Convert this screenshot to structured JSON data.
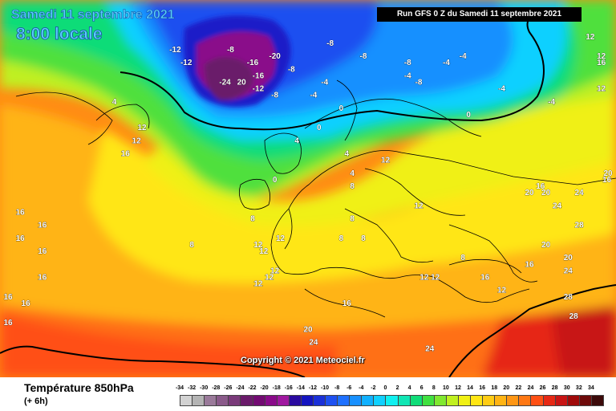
{
  "header": {
    "date_title": "Samedi 11 septembre 2021",
    "time_title": "8:00 locale",
    "run_info": "Run GFS 0 Z du Samedi 11 septembre 2021"
  },
  "copyright": "Copyright © 2021 Meteociel.fr",
  "footer": {
    "parameter": "Température 850hPa",
    "forecast_step": "(+ 6h)"
  },
  "legend": {
    "ticks": [
      "-34",
      "-32",
      "-30",
      "-28",
      "-26",
      "-24",
      "-22",
      "-20",
      "-18",
      "-16",
      "-14",
      "-12",
      "-10",
      "-8",
      "-6",
      "-4",
      "-2",
      "0",
      "2",
      "4",
      "6",
      "8",
      "10",
      "12",
      "14",
      "16",
      "18",
      "20",
      "22",
      "24",
      "26",
      "28",
      "30",
      "32",
      "34"
    ],
    "colors": [
      "#d2d2d2",
      "#b4b4b4",
      "#9a7a9a",
      "#8a5a8a",
      "#7a3a7a",
      "#6a1a6a",
      "#720a72",
      "#8a0a8a",
      "#a018a0",
      "#2a0aa0",
      "#1414c0",
      "#1a30d8",
      "#1e50f0",
      "#1e70ff",
      "#1890ff",
      "#10b0ff",
      "#10d0ff",
      "#10f0f0",
      "#10e6b4",
      "#10dc78",
      "#40e040",
      "#80e830",
      "#c0f020",
      "#f0f014",
      "#ffe614",
      "#ffcc14",
      "#ffb414",
      "#ff9614",
      "#ff7814",
      "#ff5014",
      "#e62814",
      "#c81414",
      "#a00a0a",
      "#6e0a0a",
      "#3c0a0a"
    ]
  },
  "map_labels": [
    {
      "text": "-12",
      "lon": -24,
      "lat": 68
    },
    {
      "text": "-12",
      "lon": -22,
      "lat": 66
    },
    {
      "text": "-8",
      "lon": -14,
      "lat": 68
    },
    {
      "text": "-16",
      "lon": -10,
      "lat": 66
    },
    {
      "text": "-20",
      "lon": -6,
      "lat": 67
    },
    {
      "text": "-16",
      "lon": -9,
      "lat": 64
    },
    {
      "text": "-12",
      "lon": -9,
      "lat": 62
    },
    {
      "text": "-24",
      "lon": -15,
      "lat": 63
    },
    {
      "text": "20",
      "lon": -12,
      "lat": 63
    },
    {
      "text": "-8",
      "lon": -3,
      "lat": 65
    },
    {
      "text": "-8",
      "lon": -6,
      "lat": 61
    },
    {
      "text": "-8",
      "lon": 4,
      "lat": 69
    },
    {
      "text": "-8",
      "lon": 10,
      "lat": 67
    },
    {
      "text": "-4",
      "lon": 3,
      "lat": 63
    },
    {
      "text": "-4",
      "lon": 1,
      "lat": 61
    },
    {
      "text": "0",
      "lon": 6,
      "lat": 59
    },
    {
      "text": "0",
      "lon": 2,
      "lat": 56
    },
    {
      "text": "4",
      "lon": -2,
      "lat": 54
    },
    {
      "text": "-8",
      "lon": 18,
      "lat": 66
    },
    {
      "text": "-4",
      "lon": 18,
      "lat": 64
    },
    {
      "text": "-8",
      "lon": 20,
      "lat": 63
    },
    {
      "text": "-4",
      "lon": 25,
      "lat": 66
    },
    {
      "text": "-4",
      "lon": 28,
      "lat": 67
    },
    {
      "text": "-4",
      "lon": 35,
      "lat": 62
    },
    {
      "text": "-4",
      "lon": 44,
      "lat": 60
    },
    {
      "text": "0",
      "lon": 29,
      "lat": 58
    },
    {
      "text": "12",
      "lon": 51,
      "lat": 70
    },
    {
      "text": "12",
      "lon": 53,
      "lat": 67
    },
    {
      "text": "16",
      "lon": 53,
      "lat": 66
    },
    {
      "text": "12",
      "lon": 53,
      "lat": 62
    },
    {
      "text": "4",
      "lon": -35,
      "lat": 60
    },
    {
      "text": "12",
      "lon": -30,
      "lat": 56
    },
    {
      "text": "12",
      "lon": -31,
      "lat": 54
    },
    {
      "text": "16",
      "lon": -33,
      "lat": 52
    },
    {
      "text": "0",
      "lon": -6,
      "lat": 48
    },
    {
      "text": "4",
      "lon": 7,
      "lat": 52
    },
    {
      "text": "4",
      "lon": 8,
      "lat": 49
    },
    {
      "text": "8",
      "lon": 8,
      "lat": 47
    },
    {
      "text": "8",
      "lon": -10,
      "lat": 42
    },
    {
      "text": "8",
      "lon": 8,
      "lat": 42
    },
    {
      "text": "8",
      "lon": 6,
      "lat": 39
    },
    {
      "text": "8",
      "lon": 10,
      "lat": 39
    },
    {
      "text": "16",
      "lon": -52,
      "lat": 43
    },
    {
      "text": "16",
      "lon": -48,
      "lat": 41
    },
    {
      "text": "16",
      "lon": -52,
      "lat": 39
    },
    {
      "text": "16",
      "lon": -48,
      "lat": 37
    },
    {
      "text": "16",
      "lon": -48,
      "lat": 33
    },
    {
      "text": "16",
      "lon": -55,
      "lat": 30
    },
    {
      "text": "16",
      "lon": -51,
      "lat": 29
    },
    {
      "text": "16",
      "lon": -55,
      "lat": 26
    },
    {
      "text": "8",
      "lon": -21,
      "lat": 38
    },
    {
      "text": "12",
      "lon": -9,
      "lat": 38
    },
    {
      "text": "12",
      "lon": -8,
      "lat": 37
    },
    {
      "text": "12",
      "lon": -5,
      "lat": 39
    },
    {
      "text": "12",
      "lon": -6,
      "lat": 34
    },
    {
      "text": "12",
      "lon": -7,
      "lat": 33
    },
    {
      "text": "12",
      "lon": -9,
      "lat": 32
    },
    {
      "text": "12",
      "lon": 14,
      "lat": 51
    },
    {
      "text": "12",
      "lon": 20,
      "lat": 44
    },
    {
      "text": "16",
      "lon": 7,
      "lat": 29
    },
    {
      "text": "12",
      "lon": 21,
      "lat": 33
    },
    {
      "text": "12",
      "lon": 23,
      "lat": 33
    },
    {
      "text": "8",
      "lon": 28,
      "lat": 36
    },
    {
      "text": "16",
      "lon": 32,
      "lat": 33
    },
    {
      "text": "12",
      "lon": 35,
      "lat": 31
    },
    {
      "text": "16",
      "lon": 40,
      "lat": 35
    },
    {
      "text": "20",
      "lon": 43,
      "lat": 38
    },
    {
      "text": "20",
      "lon": 47,
      "lat": 36
    },
    {
      "text": "24",
      "lon": 47,
      "lat": 34
    },
    {
      "text": "20",
      "lon": 40,
      "lat": 46
    },
    {
      "text": "16",
      "lon": 42,
      "lat": 47
    },
    {
      "text": "20",
      "lon": 43,
      "lat": 46
    },
    {
      "text": "24",
      "lon": 45,
      "lat": 44
    },
    {
      "text": "24",
      "lon": 49,
      "lat": 46
    },
    {
      "text": "28",
      "lon": 49,
      "lat": 41
    },
    {
      "text": "16",
      "lon": 54,
      "lat": 48
    },
    {
      "text": "20",
      "lon": 57,
      "lat": 49
    },
    {
      "text": "28",
      "lon": 47,
      "lat": 30
    },
    {
      "text": "28",
      "lon": 48,
      "lat": 27
    },
    {
      "text": "20",
      "lon": 0,
      "lat": 25
    },
    {
      "text": "24",
      "lon": 1,
      "lat": 23
    },
    {
      "text": "24",
      "lon": 22,
      "lat": 22
    }
  ]
}
